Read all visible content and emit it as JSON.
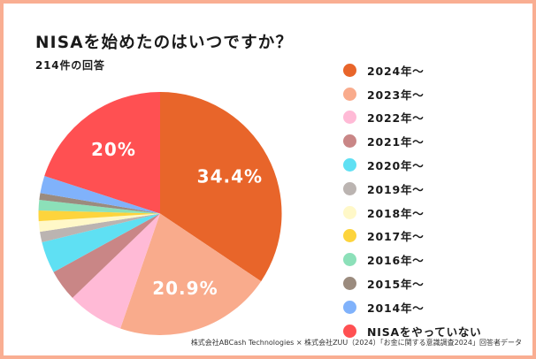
{
  "chart_data": {
    "type": "pie",
    "title": "NISAを始めたのはいつですか？",
    "subtitle": "214件の回答",
    "start_angle": "top, clockwise",
    "legend_position": "right",
    "slices": [
      {
        "label": "2024年〜",
        "value": 34.4,
        "color": "#e8652a",
        "data_label": "34.4%"
      },
      {
        "label": "2023年〜",
        "value": 20.9,
        "color": "#f9ab8c",
        "data_label": "20.9%"
      },
      {
        "label": "2022年〜",
        "value": 7.5,
        "color": "#ffbad6",
        "data_label": ""
      },
      {
        "label": "2021年〜",
        "value": 4.2,
        "color": "#c98686",
        "data_label": ""
      },
      {
        "label": "2020年〜",
        "value": 4.2,
        "color": "#5fe0f3",
        "data_label": ""
      },
      {
        "label": "2019年〜",
        "value": 1.4,
        "color": "#bbb4b1",
        "data_label": ""
      },
      {
        "label": "2018年〜",
        "value": 1.4,
        "color": "#fff8c8",
        "data_label": ""
      },
      {
        "label": "2017年〜",
        "value": 1.4,
        "color": "#fdd43c",
        "data_label": ""
      },
      {
        "label": "2016年〜",
        "value": 1.4,
        "color": "#8ce0b9",
        "data_label": ""
      },
      {
        "label": "2015年〜",
        "value": 0.9,
        "color": "#9b8b7e",
        "data_label": ""
      },
      {
        "label": "2014年〜",
        "value": 2.3,
        "color": "#80b2fb",
        "data_label": ""
      },
      {
        "label": "NISAをやっていない",
        "value": 20.0,
        "color": "#ff5052",
        "data_label": "20%"
      }
    ]
  },
  "footer": "株式会社ABCash Technologies × 株式会社ZUU（2024）「お金に関する意識調査2024」回答者データ"
}
